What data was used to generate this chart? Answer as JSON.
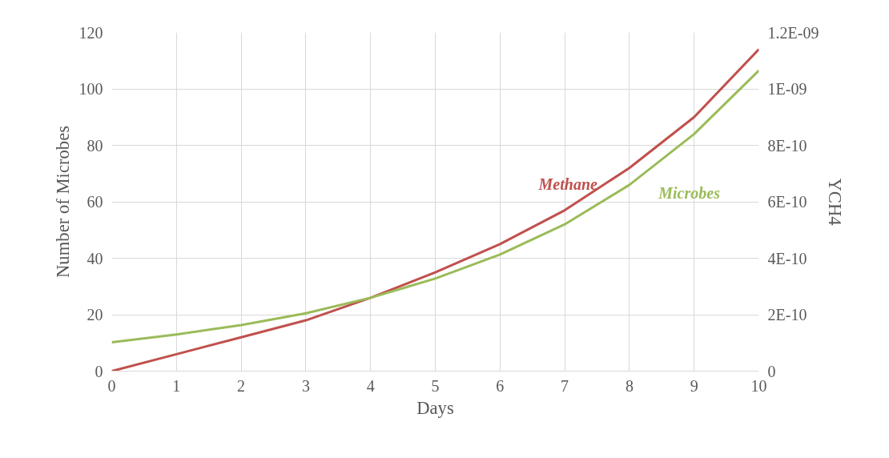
{
  "chart_data": {
    "type": "line",
    "xlabel": "Days",
    "ylabel": "Number of Microbes",
    "y2label": "YCH4",
    "x": [
      0,
      1,
      2,
      3,
      4,
      5,
      6,
      7,
      8,
      9,
      10
    ],
    "xlim": [
      0,
      10
    ],
    "xticks": [
      0,
      1,
      2,
      3,
      4,
      5,
      6,
      7,
      8,
      9,
      10
    ],
    "ylim": [
      0,
      120
    ],
    "yticks": [
      0,
      20,
      40,
      60,
      80,
      100,
      120
    ],
    "y2lim": [
      0,
      1.2e-09
    ],
    "y2ticks": [
      {
        "value": 0,
        "label": "0"
      },
      {
        "value": 2e-10,
        "label": "2E-10"
      },
      {
        "value": 4e-10,
        "label": "4E-10"
      },
      {
        "value": 6e-10,
        "label": "6E-10"
      },
      {
        "value": 8e-10,
        "label": "8E-10"
      },
      {
        "value": 1e-09,
        "label": "1E-09"
      },
      {
        "value": 1.2e-09,
        "label": "1.2E-09"
      }
    ],
    "series": [
      {
        "name": "Methane",
        "color": "#c0504d",
        "axis": "y2",
        "values": [
          0,
          6e-11,
          1.2e-10,
          1.8e-10,
          2.6e-10,
          3.5e-10,
          4.5e-10,
          5.7e-10,
          7.2e-10,
          9e-10,
          1.14e-09
        ]
      },
      {
        "name": "Microbes",
        "color": "#9bbb59",
        "values": [
          10.2,
          13,
          16.3,
          20.5,
          26,
          32.8,
          41.3,
          52,
          66,
          84,
          106.5
        ]
      }
    ],
    "grid": true,
    "marker": "none",
    "line_style": "solid"
  }
}
